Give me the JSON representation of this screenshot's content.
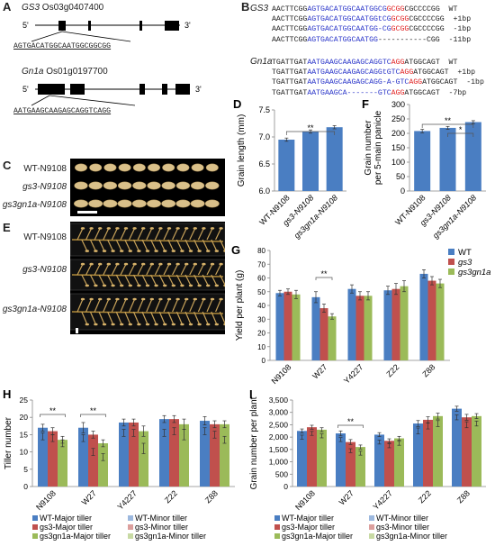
{
  "panels": {
    "A": {
      "label": "A",
      "gs3_gene": "GS3",
      "gs3_locus": "Os03g0407400",
      "gs3_target": "AGTGACATGGCAATGGCGGCGG",
      "gn1a_gene": "Gn1a",
      "gn1a_locus": "Os01g0197700",
      "gn1a_target": "AATGAAGCAAGAGCAGGTCAGG",
      "five": "5'",
      "three": "3'"
    },
    "B": {
      "label": "B",
      "gs3_gene": "GS3",
      "gn1a_gene": "Gn1a",
      "gs3_rows": [
        {
          "p1": "AACTTCGG",
          "p2": "AGTGACATGGCAATGGCG",
          "p3": "GCGG",
          "p4": "CGCCCCGG",
          "tag": "WT"
        },
        {
          "p1": "AACTTCGG",
          "p2": "AGTGACATGGCAATGGtCG",
          "p3": "GCGG",
          "p4": "CGCCCCGG",
          "tag": "+1bp"
        },
        {
          "p1": "AACTTCGG",
          "p2": "AGTGACATGGCAATGG-CG",
          "p3": "GCGG",
          "p4": "CGCCCCGG",
          "tag": "-1bp"
        },
        {
          "p1": "AACTTCGG",
          "p2": "AGTGACATGGCAATGG",
          "p3": "",
          "p4": "-----------CGG",
          "tag": "-11bp"
        }
      ],
      "gn1a_rows": [
        {
          "p1": "TGATTGAT",
          "p2": "AATGAAGCAAGAGCAGGTC",
          "p3": "AGG",
          "p4": "ATGGCAGT",
          "tag": "WT"
        },
        {
          "p1": "TGATTGAT",
          "p2": "AATGAAGCAAGAGCAGGtGTC",
          "p3": "AGG",
          "p4": "ATGGCAGT",
          "tag": "+1bp"
        },
        {
          "p1": "TGATTGAT",
          "p2": "AATGAAGCAAGAGCAGG-A-GTC",
          "p3": "AGG",
          "p4": "ATGGCAGT",
          "tag": "-1bp"
        },
        {
          "p1": "TGATTGAT",
          "p2": "AATGAAGCA-------GTC",
          "p3": "AGG",
          "p4": "ATGGCAGT",
          "tag": "-7bp"
        }
      ]
    },
    "C": {
      "label": "C",
      "rows": [
        "WT-N9108",
        "gs3-N9108",
        "gs3gn1a-N9108"
      ]
    },
    "E": {
      "label": "E",
      "rows": [
        "WT-N9108",
        "gs3-N9108",
        "gs3gn1a-N9108"
      ]
    }
  },
  "chart_data": [
    {
      "panel": "D",
      "type": "bar",
      "categories": [
        "WT-N9108",
        "gs3-N9108",
        "gs3gn1a-N9108"
      ],
      "values": [
        6.95,
        7.1,
        7.18
      ],
      "errors": [
        0.03,
        0.03,
        0.03
      ],
      "ylabel": "Grain length (mm)",
      "ylim": [
        6.0,
        7.5
      ],
      "yticks": [
        "6.0",
        "6.5",
        "7.0",
        "7.5"
      ],
      "significance": [
        "**"
      ],
      "color": "#4a7ec2"
    },
    {
      "panel": "F",
      "type": "bar",
      "categories": [
        "WT-N9108",
        "gs3-N9108",
        "gs3gn1a-N9108"
      ],
      "values": [
        208,
        219,
        239
      ],
      "errors": [
        6,
        5,
        5
      ],
      "ylabel": "Grain number per 5-main panicle",
      "ylim": [
        0,
        300
      ],
      "yticks": [
        "0",
        "50",
        "100",
        "150",
        "200",
        "250",
        "300"
      ],
      "significance": [
        "**",
        "*"
      ],
      "color": "#4a7ec2"
    },
    {
      "panel": "G",
      "type": "bar",
      "categories": [
        "N9108",
        "W27",
        "Y4227",
        "Z22",
        "Z88"
      ],
      "series": [
        {
          "name": "WT",
          "values": [
            49,
            46,
            52,
            51,
            63
          ],
          "errors": [
            2,
            4,
            3,
            3,
            3
          ],
          "color": "#4a7ec2"
        },
        {
          "name": "gs3",
          "values": [
            50,
            38,
            47,
            52,
            58
          ],
          "errors": [
            2,
            3,
            3,
            4,
            3
          ],
          "color": "#c0504d"
        },
        {
          "name": "gs3gn1a",
          "values": [
            48,
            32,
            47,
            54,
            56
          ],
          "errors": [
            3,
            2,
            3,
            4,
            3
          ],
          "color": "#9bbb59"
        }
      ],
      "ylabel": "Yield per plant (g)",
      "ylim": [
        0,
        80
      ],
      "yticks": [
        "0",
        "10",
        "20",
        "30",
        "40",
        "50",
        "60",
        "70",
        "80"
      ],
      "significance": [
        "**"
      ],
      "legend_placement": "top-right"
    },
    {
      "panel": "H",
      "type": "bar",
      "categories": [
        "N9108",
        "W27",
        "Y4227",
        "Z22",
        "Z88"
      ],
      "series": [
        {
          "name": "WT-Major tiller",
          "values": [
            17,
            17,
            18.5,
            19.5,
            19
          ],
          "errors": [
            1,
            1.5,
            1,
            1,
            1.2
          ],
          "color": "#4a7ec2"
        },
        {
          "name": "gs3-Major tiller",
          "values": [
            16,
            15,
            18.5,
            19.5,
            18
          ],
          "errors": [
            1,
            1,
            1,
            1,
            1
          ],
          "color": "#c0504d"
        },
        {
          "name": "gs3gn1a-Major tiller",
          "values": [
            13.5,
            12.5,
            16,
            18,
            18
          ],
          "errors": [
            1,
            1,
            1.5,
            1.5,
            1
          ],
          "color": "#9bbb59"
        },
        {
          "name": "WT-Minor tiller",
          "values": [
            14.5,
            14,
            15.5,
            15.5,
            16
          ],
          "errors": [
            1,
            1,
            1,
            1,
            1
          ],
          "color": "#4a7ec2"
        },
        {
          "name": "gs3-Minor tiller",
          "values": [
            14,
            10,
            15.5,
            16,
            15
          ],
          "errors": [
            1,
            1,
            1,
            1,
            1
          ],
          "color": "#c0504d"
        },
        {
          "name": "gs3gn1a-Minor tiller",
          "values": [
            12.5,
            8.5,
            11,
            15,
            13.5
          ],
          "errors": [
            1,
            1,
            1.5,
            1.5,
            1
          ],
          "color": "#9bbb59"
        }
      ],
      "ylabel": "Tiller number",
      "ylim": [
        0,
        25
      ],
      "yticks": [
        "0",
        "5",
        "10",
        "15",
        "20",
        "25"
      ],
      "significance": [
        "**",
        "**"
      ]
    },
    {
      "panel": "I",
      "type": "bar",
      "categories": [
        "N9108",
        "W27",
        "Y4227",
        "Z22",
        "Z88"
      ],
      "series": [
        {
          "name": "WT-Major tiller",
          "values": [
            2250,
            2150,
            2100,
            2550,
            3150
          ],
          "errors": [
            80,
            100,
            80,
            120,
            100
          ],
          "color": "#4a7ec2"
        },
        {
          "name": "gs3-Major tiller",
          "values": [
            2400,
            1800,
            1850,
            2700,
            2800
          ],
          "errors": [
            80,
            100,
            80,
            120,
            120
          ],
          "color": "#c0504d"
        },
        {
          "name": "gs3gn1a-Major tiller",
          "values": [
            2300,
            1600,
            1950,
            2850,
            2850
          ],
          "errors": [
            80,
            80,
            80,
            120,
            100
          ],
          "color": "#9bbb59"
        },
        {
          "name": "WT-Minor tiller",
          "values": [
            2000,
            1900,
            1800,
            2250,
            2800
          ],
          "errors": [
            80,
            80,
            80,
            120,
            100
          ],
          "color": "#4a7ec2"
        },
        {
          "name": "gs3-Minor tiller",
          "values": [
            2150,
            1450,
            1650,
            2450,
            2500
          ],
          "errors": [
            80,
            80,
            80,
            120,
            120
          ],
          "color": "#c0504d"
        },
        {
          "name": "gs3gn1a-Minor tiller",
          "values": [
            2050,
            1350,
            1750,
            2550,
            2550
          ],
          "errors": [
            80,
            80,
            80,
            120,
            100
          ],
          "color": "#9bbb59"
        }
      ],
      "ylabel": "Grain number per plant",
      "ylim": [
        0,
        3500
      ],
      "yticks": [
        "0",
        "500",
        "1,000",
        "1,500",
        "2,000",
        "2,500",
        "3,000",
        "3,500"
      ],
      "significance": [
        "**"
      ]
    }
  ]
}
